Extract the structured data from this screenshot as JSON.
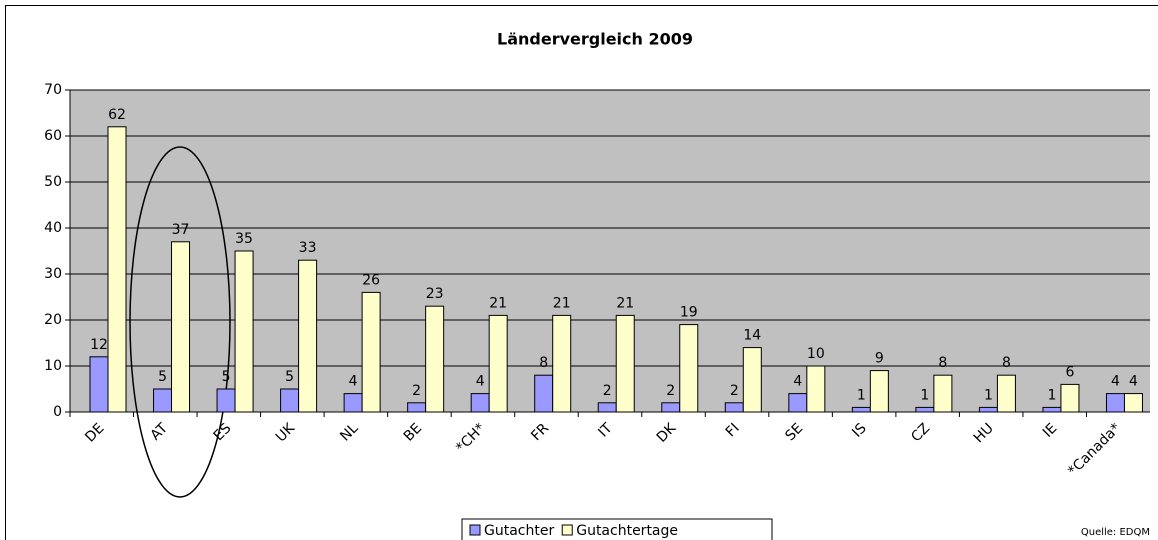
{
  "chart_data": {
    "type": "bar",
    "title": "Ländervergleich 2009",
    "categories": [
      "DE",
      "AT",
      "ES",
      "UK",
      "NL",
      "BE",
      "*CH*",
      "FR",
      "IT",
      "DK",
      "FI",
      "SE",
      "IS",
      "CZ",
      "HU",
      "IE",
      "*Canada*"
    ],
    "series": [
      {
        "name": "Gutachter",
        "color": "#9999ff",
        "values": [
          12,
          5,
          5,
          5,
          4,
          2,
          4,
          8,
          2,
          2,
          2,
          4,
          1,
          1,
          1,
          1,
          4
        ]
      },
      {
        "name": "Gutachtertage",
        "color": "#ffffcc",
        "values": [
          62,
          37,
          35,
          33,
          26,
          23,
          21,
          21,
          21,
          19,
          14,
          10,
          9,
          8,
          8,
          6,
          4
        ]
      }
    ],
    "ylim": [
      0,
      70
    ],
    "yticks": [
      0,
      10,
      20,
      30,
      40,
      50,
      60,
      70
    ],
    "grid": true,
    "legend": "bottom",
    "source": "Quelle: EDQM"
  }
}
